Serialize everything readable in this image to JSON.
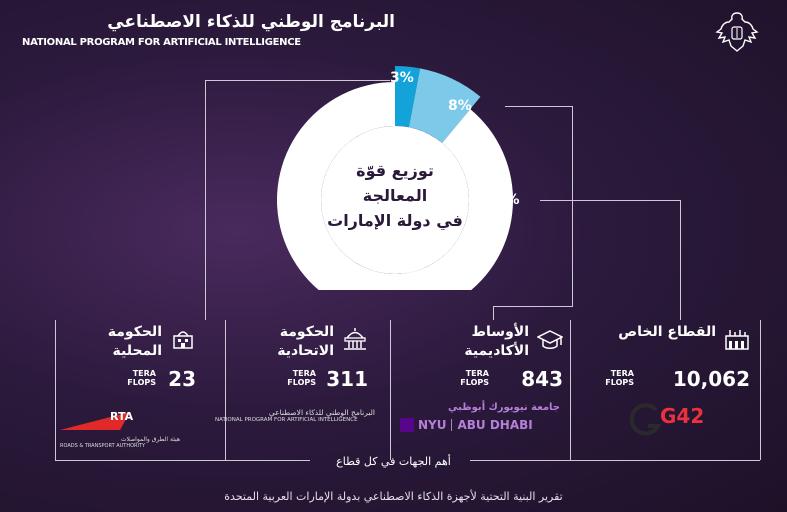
{
  "header": {
    "title_ar": "البرنامج الوطني للذكاء الاصطناعي",
    "title_en": "NATIONAL PROGRAM FOR ARTIFICIAL INTELLIGENCE"
  },
  "donut": {
    "center_line1": "توزيع قوّة",
    "center_line2": "المعالجة",
    "center_line3": "في دولة الإمارات",
    "segments": [
      {
        "label": "89%",
        "value": 89,
        "color": "#ffffff"
      },
      {
        "label": "8%",
        "value": 8,
        "color": "#7cc9ea"
      },
      {
        "label": "3%",
        "value": 3,
        "color": "#14a3d9"
      }
    ]
  },
  "sectors": [
    {
      "name_ar_1": "القطاع الخاص",
      "name_ar_2": "",
      "value": "10,062",
      "unit_1": "TERA",
      "unit_2": "FLOPS",
      "icon": "factory-icon"
    },
    {
      "name_ar_1": "الأوساط",
      "name_ar_2": "الأكاديمية",
      "value": "843",
      "unit_1": "TERA",
      "unit_2": "FLOPS",
      "icon": "graduation-cap-icon"
    },
    {
      "name_ar_1": "الحكومة",
      "name_ar_2": "الاتحادية",
      "value": "311",
      "unit_1": "TERA",
      "unit_2": "FLOPS",
      "icon": "federal-building-icon"
    },
    {
      "name_ar_1": "الحكومة",
      "name_ar_2": "المحلية",
      "value": "23",
      "unit_1": "TERA",
      "unit_2": "FLOPS",
      "icon": "local-building-icon"
    }
  ],
  "logos": {
    "g42": "G42",
    "nyu_ar": "جامعة نيويورك أبوظبي",
    "nyu_en_1": "NYU",
    "nyu_en_2": "ABU DHABI",
    "nai_ar": "البرنامج الوطني للذكاء الاصطناعي",
    "nai_en": "NATIONAL PROGRAM FOR ARTIFICIAL INTELLIGENCE",
    "rta": "RTA",
    "rta_ar": "هيئة الطرق والمواصلات",
    "rta_en": "ROADS & TRANSPORT AUTHORITY"
  },
  "sources_label": "أهم الجهات في كل قطاع",
  "footer": "تقرير البنية التحتية لأجهزة الذكاء الاصطناعي بدولة الإمارات العربية المتحدة",
  "colors": {
    "accent_blue": "#14a3d9",
    "light_blue": "#7cc9ea",
    "g42_red": "#e8323c",
    "rta_red": "#e02a2a",
    "nyu_purple": "#57068c"
  }
}
